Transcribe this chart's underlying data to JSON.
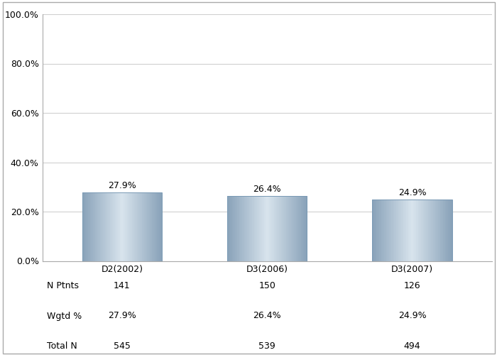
{
  "categories": [
    "D2(2002)",
    "D3(2006)",
    "D3(2007)"
  ],
  "values": [
    27.9,
    26.4,
    24.9
  ],
  "bar_labels": [
    "27.9%",
    "26.4%",
    "24.9%"
  ],
  "ylim": [
    0,
    100
  ],
  "yticks": [
    0,
    20,
    40,
    60,
    80,
    100
  ],
  "ytick_labels": [
    "0.0%",
    "20.0%",
    "40.0%",
    "60.0%",
    "80.0%",
    "100.0%"
  ],
  "table_rows": [
    "N Ptnts",
    "Wgtd %",
    "Total N"
  ],
  "table_data": [
    [
      "141",
      "150",
      "126"
    ],
    [
      "27.9%",
      "26.4%",
      "24.9%"
    ],
    [
      "545",
      "539",
      "494"
    ]
  ],
  "background_color": "#ffffff",
  "grid_color": "#d0d0d0",
  "text_color": "#000000",
  "font_size": 9,
  "label_font_size": 9,
  "bar_dark_r": 0.537,
  "bar_dark_g": 0.635,
  "bar_dark_b": 0.725,
  "bar_light_r": 0.847,
  "bar_light_g": 0.894,
  "bar_light_b": 0.929
}
